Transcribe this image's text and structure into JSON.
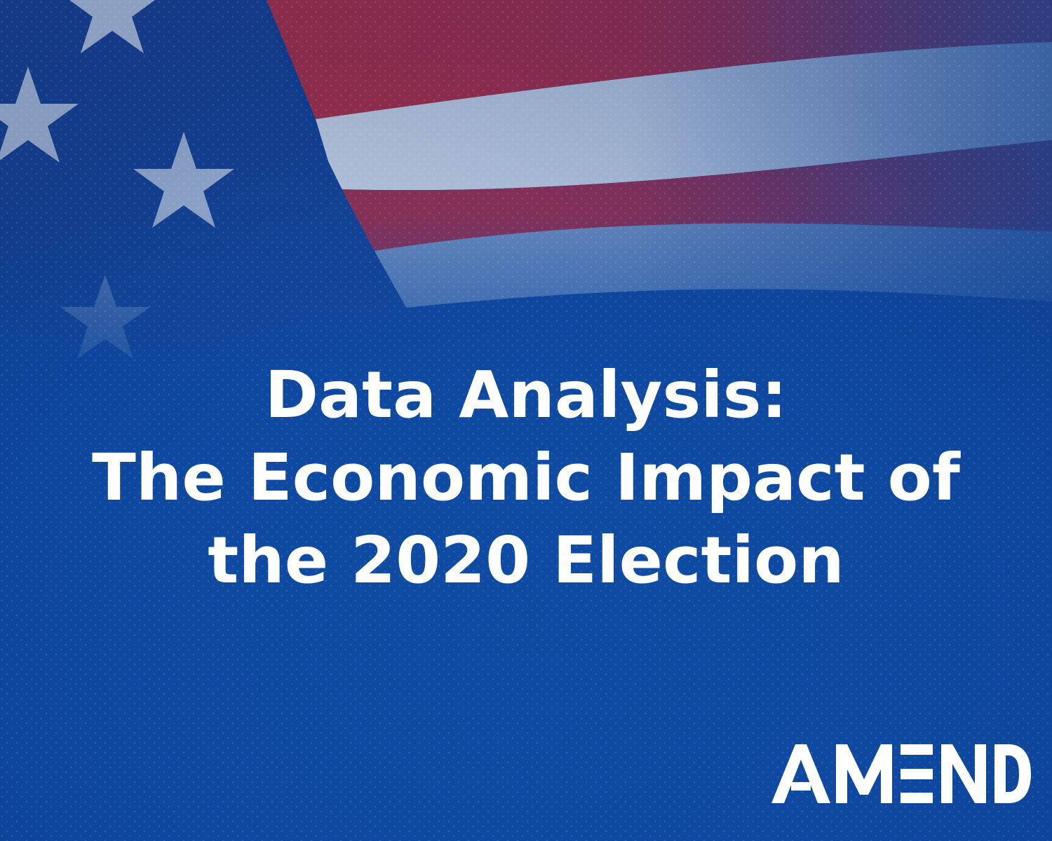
{
  "headline": {
    "line1": "Data Analysis:",
    "line2": "The Economic Impact of",
    "line3": "the 2020 Election"
  },
  "logo": {
    "text": "AMEND",
    "color": "#ffffff"
  },
  "colors": {
    "background_blue": "#0f4aa3",
    "deep_blue": "#0b3a86",
    "flag_red": "#c8283a",
    "flag_white": "#e6ecf5",
    "star_white": "#dfe6f2",
    "text": "#ffffff"
  },
  "icons": [
    "waving-flag-icon",
    "star-icon"
  ]
}
